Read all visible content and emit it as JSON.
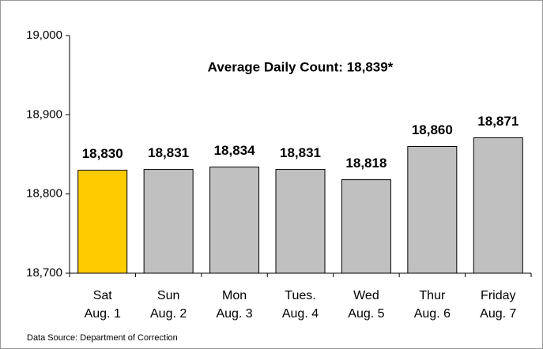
{
  "chart_data": {
    "type": "bar",
    "annotation": "Average Daily Count: 18,839*",
    "source": "Data Source: Department of Correction",
    "categories": [
      [
        "Sat",
        "Aug. 1"
      ],
      [
        "Sun",
        "Aug. 2"
      ],
      [
        "Mon",
        "Aug. 3"
      ],
      [
        "Tues.",
        "Aug. 4"
      ],
      [
        "Wed",
        "Aug. 5"
      ],
      [
        "Thur",
        "Aug. 6"
      ],
      [
        "Friday",
        "Aug. 7"
      ]
    ],
    "values": [
      18830,
      18831,
      18834,
      18831,
      18818,
      18860,
      18871
    ],
    "value_labels": [
      "18,830",
      "18,831",
      "18,834",
      "18,831",
      "18,818",
      "18,860",
      "18,871"
    ],
    "colors": [
      "#ffcc00",
      "#c0c0c0",
      "#c0c0c0",
      "#c0c0c0",
      "#c0c0c0",
      "#c0c0c0",
      "#c0c0c0"
    ],
    "ylim": [
      18700,
      19000
    ],
    "yticks": [
      {
        "value": 18700,
        "label": "18,700"
      },
      {
        "value": 18800,
        "label": "18,800"
      },
      {
        "value": 18900,
        "label": "18,900"
      },
      {
        "value": 19000,
        "label": "19,000"
      }
    ],
    "grid": false
  }
}
